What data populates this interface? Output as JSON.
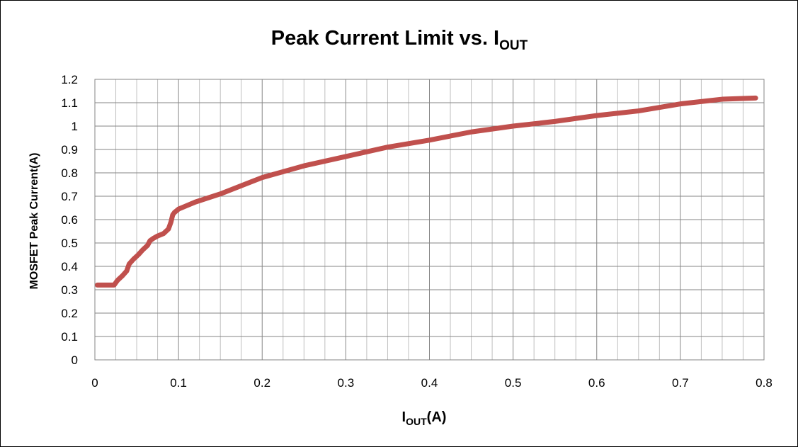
{
  "chart_data": {
    "type": "line",
    "title": "Peak Current Limit vs. I",
    "title_subscript": "OUT",
    "xlabel": "I",
    "xlabel_subscript": "OUT",
    "xlabel_suffix": "(A)",
    "ylabel": "MOSFET Peak Current(A)",
    "xlim": [
      0,
      0.8
    ],
    "ylim": [
      0,
      1.2
    ],
    "x_major_step": 0.1,
    "y_major_step": 0.1,
    "x_minor_per_major": 4,
    "x_tick_labels": [
      "0",
      "0.1",
      "0.2",
      "0.3",
      "0.4",
      "0.5",
      "0.6",
      "0.7",
      "0.8"
    ],
    "y_tick_labels": [
      "0",
      "0.1",
      "0.2",
      "0.3",
      "0.4",
      "0.5",
      "0.6",
      "0.7",
      "0.8",
      "0.9",
      "1",
      "1.1",
      "1.2"
    ],
    "grid": true,
    "legend": "none",
    "series_color": "#c0504d",
    "grid_major_color": "#868686",
    "grid_minor_color": "#bfbfbf",
    "series": [
      {
        "x": [
          0.003,
          0.01,
          0.02,
          0.023,
          0.027,
          0.033,
          0.038,
          0.041,
          0.046,
          0.052,
          0.057,
          0.063,
          0.066,
          0.07,
          0.075,
          0.082,
          0.088,
          0.091,
          0.093,
          0.095,
          0.1,
          0.11,
          0.12,
          0.15,
          0.2,
          0.25,
          0.3,
          0.35,
          0.4,
          0.45,
          0.5,
          0.55,
          0.6,
          0.65,
          0.7,
          0.75,
          0.79
        ],
        "y": [
          0.32,
          0.32,
          0.32,
          0.32,
          0.34,
          0.36,
          0.38,
          0.41,
          0.43,
          0.45,
          0.47,
          0.49,
          0.51,
          0.52,
          0.53,
          0.54,
          0.56,
          0.59,
          0.62,
          0.63,
          0.645,
          0.66,
          0.675,
          0.71,
          0.78,
          0.83,
          0.87,
          0.91,
          0.94,
          0.975,
          1.0,
          1.02,
          1.045,
          1.065,
          1.095,
          1.115,
          1.12
        ]
      }
    ]
  }
}
